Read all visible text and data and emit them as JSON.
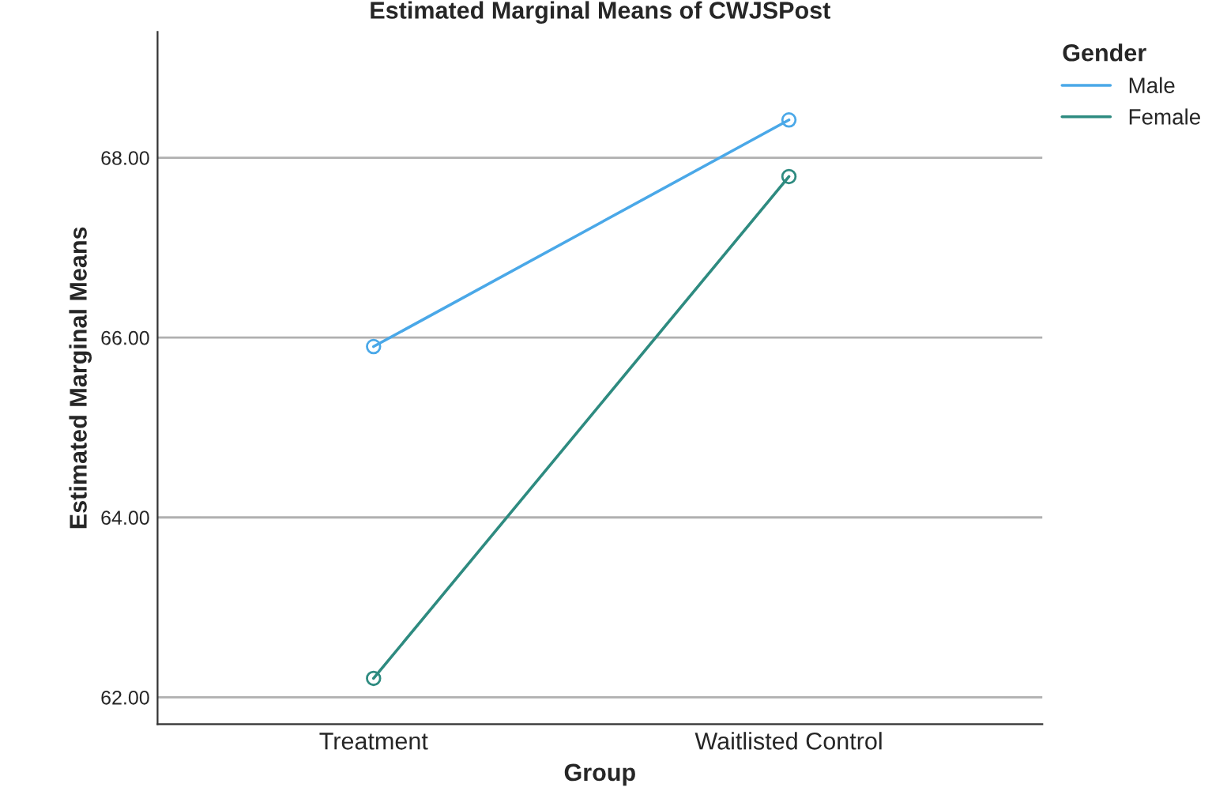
{
  "chart_data": {
    "type": "line",
    "title": "Estimated Marginal Means of CWJSPost",
    "xlabel": "Group",
    "ylabel": "Estimated Marginal Means",
    "legend_title": "Gender",
    "categories": [
      "Treatment",
      "Waitlisted Control"
    ],
    "series": [
      {
        "name": "Male",
        "color": "#4aa8e8",
        "values": [
          65.9,
          68.42
        ]
      },
      {
        "name": "Female",
        "color": "#2e8b80",
        "values": [
          62.21,
          67.79
        ]
      }
    ],
    "ylim": [
      61.7,
      69.4
    ],
    "yticks": [
      {
        "value": 62,
        "label": "62.00"
      },
      {
        "value": 64,
        "label": "64.00"
      },
      {
        "value": 66,
        "label": "66.00"
      },
      {
        "value": 68,
        "label": "68.00"
      }
    ],
    "grid": "y",
    "legend": "top right",
    "marker": "circle",
    "line_style": "solid"
  }
}
